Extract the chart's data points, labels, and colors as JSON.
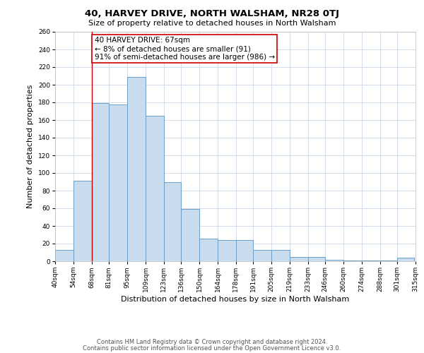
{
  "title": "40, HARVEY DRIVE, NORTH WALSHAM, NR28 0TJ",
  "subtitle": "Size of property relative to detached houses in North Walsham",
  "xlabel": "Distribution of detached houses by size in North Walsham",
  "ylabel": "Number of detached properties",
  "bar_left_edges": [
    40,
    54,
    68,
    81,
    95,
    109,
    123,
    136,
    150,
    164,
    178,
    191,
    205,
    219,
    233,
    246,
    260,
    274,
    288,
    301
  ],
  "bar_heights": [
    13,
    91,
    179,
    178,
    209,
    165,
    90,
    59,
    26,
    24,
    24,
    13,
    13,
    5,
    5,
    2,
    1,
    1,
    1,
    4
  ],
  "bin_labels": [
    "40sqm",
    "54sqm",
    "68sqm",
    "81sqm",
    "95sqm",
    "109sqm",
    "123sqm",
    "136sqm",
    "150sqm",
    "164sqm",
    "178sqm",
    "191sqm",
    "205sqm",
    "219sqm",
    "233sqm",
    "246sqm",
    "260sqm",
    "274sqm",
    "288sqm",
    "301sqm",
    "315sqm"
  ],
  "bar_color": "#c8dcee",
  "bar_edge_color": "#6a9fc8",
  "property_line_x": 68,
  "property_line_color": "#cc0000",
  "annotation_line1": "40 HARVEY DRIVE: 67sqm",
  "annotation_line2": "← 8% of detached houses are smaller (91)",
  "annotation_line3": "91% of semi-detached houses are larger (986) →",
  "annotation_box_color": "#ffffff",
  "annotation_box_edge_color": "#cc0000",
  "ylim": [
    0,
    260
  ],
  "yticks": [
    0,
    20,
    40,
    60,
    80,
    100,
    120,
    140,
    160,
    180,
    200,
    220,
    240,
    260
  ],
  "footer1": "Contains HM Land Registry data © Crown copyright and database right 2024.",
  "footer2": "Contains public sector information licensed under the Open Government Licence v3.0.",
  "background_color": "#ffffff",
  "grid_color": "#d0d8e8",
  "title_fontsize": 9.5,
  "subtitle_fontsize": 8.0,
  "axis_label_fontsize": 8.0,
  "tick_fontsize": 6.5,
  "annotation_fontsize": 7.5,
  "footer_fontsize": 6.0
}
